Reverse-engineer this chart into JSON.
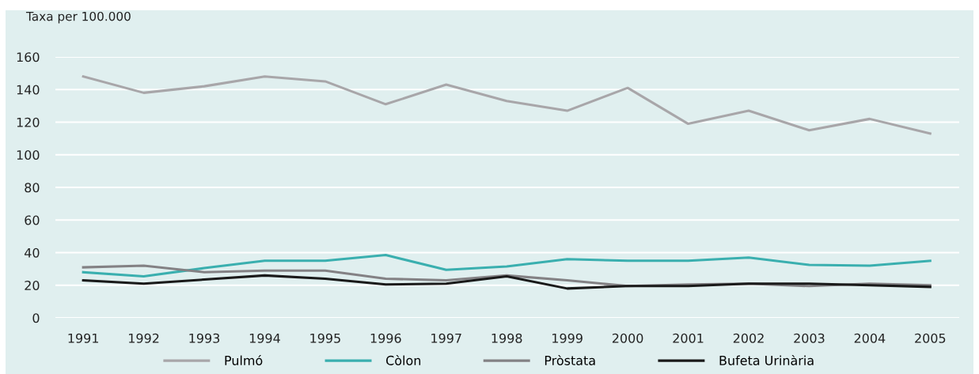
{
  "chart_data": {
    "type": "line",
    "ylabel": "Taxa per 100.000",
    "categories": [
      "1991",
      "1992",
      "1993",
      "1994",
      "1995",
      "1996",
      "1997",
      "1998",
      "1999",
      "2000",
      "2001",
      "2002",
      "2003",
      "2004",
      "2005"
    ],
    "series": [
      {
        "name": "Pulmó",
        "color": "#a8a6a9",
        "values": [
          148,
          138,
          142,
          148,
          145,
          131,
          143,
          133,
          127,
          141,
          119,
          127,
          115,
          122,
          113
        ]
      },
      {
        "name": "Còlon",
        "color": "#3aafaf",
        "values": [
          28,
          25.5,
          30.5,
          35,
          35,
          38.5,
          29.5,
          31.5,
          36,
          35,
          35,
          37,
          32.5,
          32,
          35
        ]
      },
      {
        "name": "Pròstata",
        "color": "#838184",
        "values": [
          31,
          32,
          28,
          29,
          29,
          24,
          23,
          26,
          23,
          19.5,
          20.5,
          21,
          19.5,
          21,
          20
        ]
      },
      {
        "name": "Bufeta Urinària",
        "color": "#1a1a1a",
        "values": [
          23,
          21,
          23.5,
          26,
          24,
          20.5,
          21,
          25.5,
          18,
          19.5,
          19.5,
          21,
          21,
          20,
          19
        ]
      }
    ],
    "ylim": [
      0,
      160
    ],
    "yticks": [
      0,
      20,
      40,
      60,
      80,
      100,
      120,
      140,
      160
    ],
    "grid": "y",
    "legend": "bottom",
    "marker": "none",
    "line_style": "solid"
  }
}
